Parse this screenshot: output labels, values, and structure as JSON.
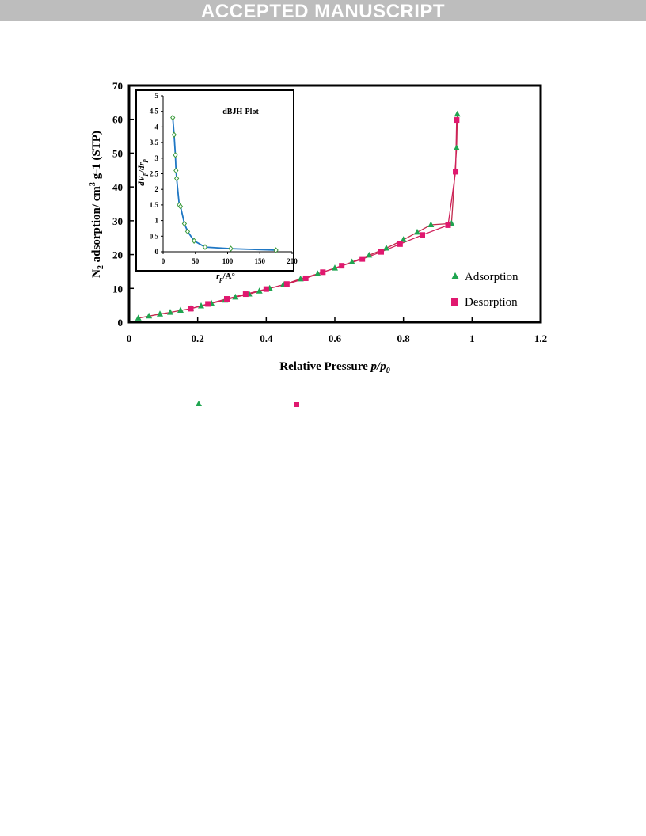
{
  "header": {
    "banner_text": "ACCEPTED MANUSCRIPT"
  },
  "chart_data": [
    {
      "type": "scatter",
      "xlabel_text": "Relative Pressure ",
      "xlabel_var": "p/p",
      "xlabel_sub": "0",
      "ylabel_prefix": "N",
      "ylabel_sub": "2",
      "ylabel_mid": " adsorption/ cm",
      "ylabel_sup": "3",
      "ylabel_suffix": " g-1 (STP)",
      "xlim": [
        0,
        1.2
      ],
      "ylim": [
        0,
        70
      ],
      "x_ticks": [
        "0",
        "0.2",
        "0.4",
        "0.6",
        "0.8",
        "1",
        "1.2"
      ],
      "y_ticks": [
        "0",
        "10",
        "20",
        "30",
        "40",
        "50",
        "60",
        "70"
      ],
      "legend_position": "right, lower-middle",
      "colors": {
        "adsorption": "#1fa550",
        "desorption": "#e0186f",
        "line": "#c22a4c"
      },
      "series": [
        {
          "name": "Adsorption",
          "marker": "triangle",
          "x": [
            0.027,
            0.058,
            0.09,
            0.12,
            0.15,
            0.18,
            0.21,
            0.24,
            0.28,
            0.31,
            0.35,
            0.38,
            0.41,
            0.45,
            0.5,
            0.55,
            0.6,
            0.65,
            0.7,
            0.75,
            0.8,
            0.84,
            0.88,
            0.94,
            0.955,
            0.957
          ],
          "y": [
            1.2,
            1.8,
            2.4,
            2.9,
            3.5,
            4.0,
            4.8,
            5.6,
            6.5,
            7.4,
            8.3,
            9.2,
            10.0,
            11.1,
            12.8,
            14.3,
            16.0,
            17.8,
            19.8,
            21.9,
            24.4,
            26.6,
            28.8,
            29.2,
            51.5,
            61.5
          ]
        },
        {
          "name": "Desorption",
          "marker": "square",
          "x": [
            0.18,
            0.23,
            0.285,
            0.34,
            0.4,
            0.46,
            0.515,
            0.565,
            0.62,
            0.68,
            0.735,
            0.79,
            0.855,
            0.93,
            0.952,
            0.955
          ],
          "y": [
            4.0,
            5.4,
            6.9,
            8.3,
            9.8,
            11.3,
            13.0,
            14.8,
            16.7,
            18.7,
            20.8,
            23.1,
            25.8,
            28.7,
            44.5,
            59.8
          ]
        }
      ],
      "legend": [
        "Adsorption",
        "Desorption"
      ]
    },
    {
      "type": "line",
      "title": "dBJH-Plot",
      "xlabel_var": "r",
      "xlabel_sub": "p",
      "xlabel_unit": "/A°",
      "ylabel_d1": "dV",
      "ylabel_sub1": "p",
      "ylabel_mid": "/dr",
      "ylabel_sub2": "p",
      "xlim": [
        0,
        200
      ],
      "ylim": [
        0,
        5
      ],
      "x_ticks": [
        "0",
        "50",
        "100",
        "150",
        "200"
      ],
      "y_ticks": [
        "0",
        "0.5",
        "1",
        "1.5",
        "2",
        "2.5",
        "3",
        "3.5",
        "4",
        "4.5",
        "5"
      ],
      "colors": {
        "line": "#1f77c4",
        "marker": "#3a9a3a"
      },
      "series": [
        {
          "name": "dBJH",
          "x": [
            15,
            17,
            19,
            20,
            21,
            25,
            27,
            33,
            38,
            48,
            65,
            105,
            175
          ],
          "y": [
            4.3,
            3.75,
            3.1,
            2.6,
            2.35,
            1.5,
            1.45,
            0.9,
            0.65,
            0.35,
            0.15,
            0.1,
            0.05
          ]
        }
      ]
    }
  ]
}
